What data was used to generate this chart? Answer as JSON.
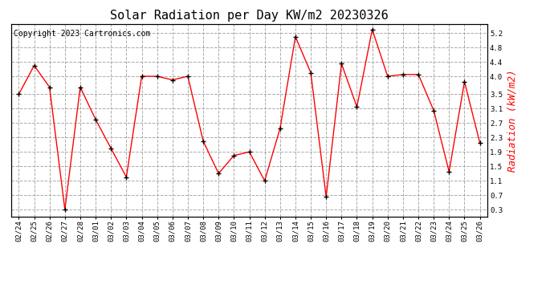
{
  "title": "Solar Radiation per Day KW/m2 20230326",
  "copyright": "Copyright 2023 Cartronics.com",
  "ylabel": "Radiation (kW/m2)",
  "dates": [
    "02/24",
    "02/25",
    "02/26",
    "02/27",
    "02/28",
    "03/01",
    "03/02",
    "03/03",
    "03/04",
    "03/05",
    "03/06",
    "03/07",
    "03/08",
    "03/09",
    "03/10",
    "03/11",
    "03/12",
    "03/13",
    "03/14",
    "03/15",
    "03/16",
    "03/17",
    "03/18",
    "03/19",
    "03/20",
    "03/21",
    "03/22",
    "03/23",
    "03/24",
    "03/25",
    "03/26"
  ],
  "values": [
    3.5,
    4.3,
    3.7,
    0.3,
    3.7,
    2.8,
    2.0,
    1.2,
    4.0,
    4.0,
    3.9,
    4.0,
    2.2,
    1.3,
    1.8,
    1.9,
    1.1,
    2.55,
    5.1,
    4.1,
    0.65,
    4.35,
    3.15,
    5.3,
    4.0,
    4.05,
    4.05,
    3.05,
    1.35,
    3.85,
    2.15
  ],
  "line_color": "red",
  "marker_color": "black",
  "marker": "+",
  "marker_size": 5,
  "marker_linewidth": 1.0,
  "line_width": 1.0,
  "ylim": [
    0.1,
    5.45
  ],
  "yticks": [
    0.3,
    0.7,
    1.1,
    1.5,
    1.9,
    2.3,
    2.7,
    3.1,
    3.5,
    4.0,
    4.4,
    4.8,
    5.2
  ],
  "grid_color": "#aaaaaa",
  "grid_style": "--",
  "background_color": "white",
  "title_fontsize": 11,
  "copyright_fontsize": 7,
  "ylabel_fontsize": 9,
  "ylabel_color": "red",
  "tick_fontsize": 6.5,
  "border_color": "black"
}
